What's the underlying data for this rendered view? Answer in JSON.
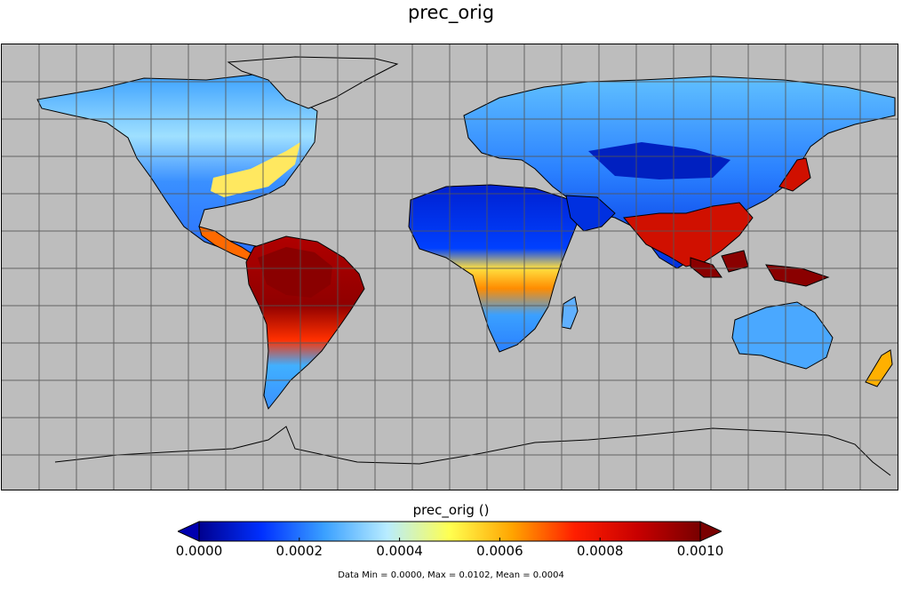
{
  "title": "prec_orig",
  "colorbar": {
    "label": "prec_orig ()",
    "ticks": [
      "0.0000",
      "0.0002",
      "0.0004",
      "0.0006",
      "0.0008",
      "0.0010"
    ],
    "colormap": [
      "#00008f",
      "#0030ff",
      "#3aa0ff",
      "#b8ecff",
      "#ffff50",
      "#ffa400",
      "#ff1e00",
      "#c80000",
      "#780000"
    ],
    "under_color": "#0000b0",
    "over_color": "#7a0000",
    "range": [
      0.0,
      0.001
    ]
  },
  "stats": "Data Min = 0.0000, Max = 0.0102, Mean = 0.0004",
  "map": {
    "missing_color": "#bdbdbd",
    "grid": "15-degree graticule",
    "projection": "equirectangular"
  }
}
